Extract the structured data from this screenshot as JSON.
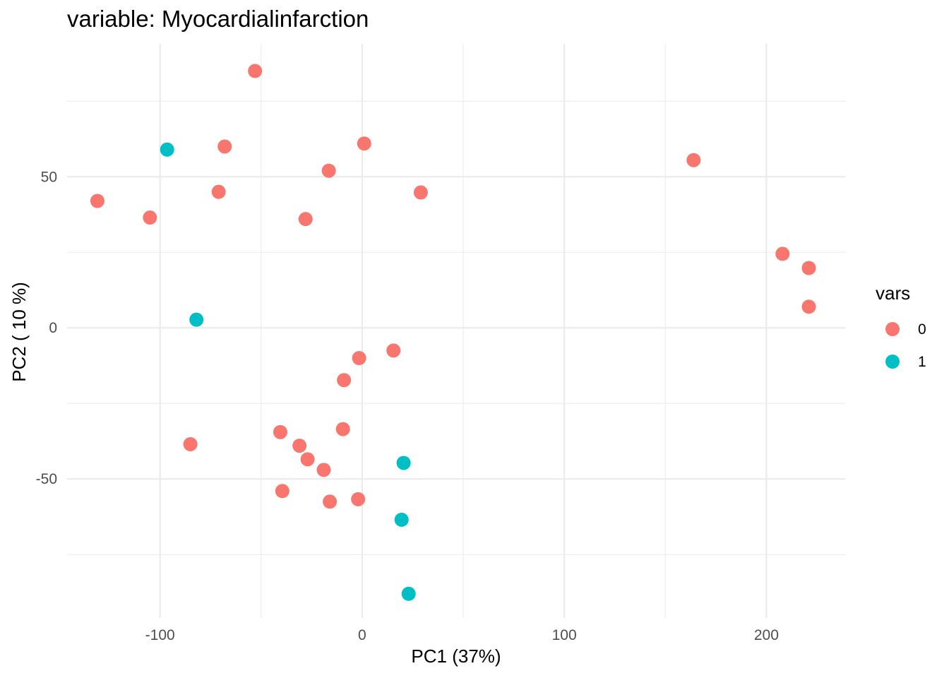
{
  "chart_data": {
    "type": "scatter",
    "title": "variable: Myocardialinfarction",
    "xlabel": "PC1 (37%)",
    "ylabel": "PC2 ( 10 %)",
    "xlim": [
      -146,
      239
    ],
    "ylim": [
      -96,
      94
    ],
    "x_ticks": [
      -100,
      0,
      100,
      200
    ],
    "y_ticks": [
      -50,
      0,
      50
    ],
    "x_tick_labels": [
      "-100",
      "0",
      "100",
      "200"
    ],
    "y_tick_labels": [
      "-50",
      "0",
      "50"
    ],
    "grid": true,
    "legend": {
      "title": "vars",
      "placement": "right"
    },
    "series": [
      {
        "name": "0",
        "color": "#F8766D",
        "points": [
          [
            -53,
            85
          ],
          [
            -68,
            60
          ],
          [
            1,
            61
          ],
          [
            -16.5,
            52
          ],
          [
            -71,
            45
          ],
          [
            29,
            44.8
          ],
          [
            -131,
            42
          ],
          [
            -105,
            36.5
          ],
          [
            -28,
            36
          ],
          [
            164,
            55.5
          ],
          [
            208,
            24.5
          ],
          [
            221,
            19.8
          ],
          [
            221,
            7
          ],
          [
            15.5,
            -7.5
          ],
          [
            -1.5,
            -10
          ],
          [
            -9,
            -17.3
          ],
          [
            -85,
            -38.5
          ],
          [
            -40.5,
            -34.5
          ],
          [
            -9.5,
            -33.5
          ],
          [
            -31,
            -39
          ],
          [
            -27,
            -43.5
          ],
          [
            -19,
            -47
          ],
          [
            -39.5,
            -54
          ],
          [
            -16,
            -57.5
          ],
          [
            -2,
            -56.7
          ]
        ]
      },
      {
        "name": "1",
        "color": "#00BFC4",
        "points": [
          [
            -96.5,
            59
          ],
          [
            -82,
            2.7
          ],
          [
            20.5,
            -44.7
          ],
          [
            19.5,
            -63.5
          ],
          [
            23,
            -88
          ]
        ]
      }
    ]
  }
}
